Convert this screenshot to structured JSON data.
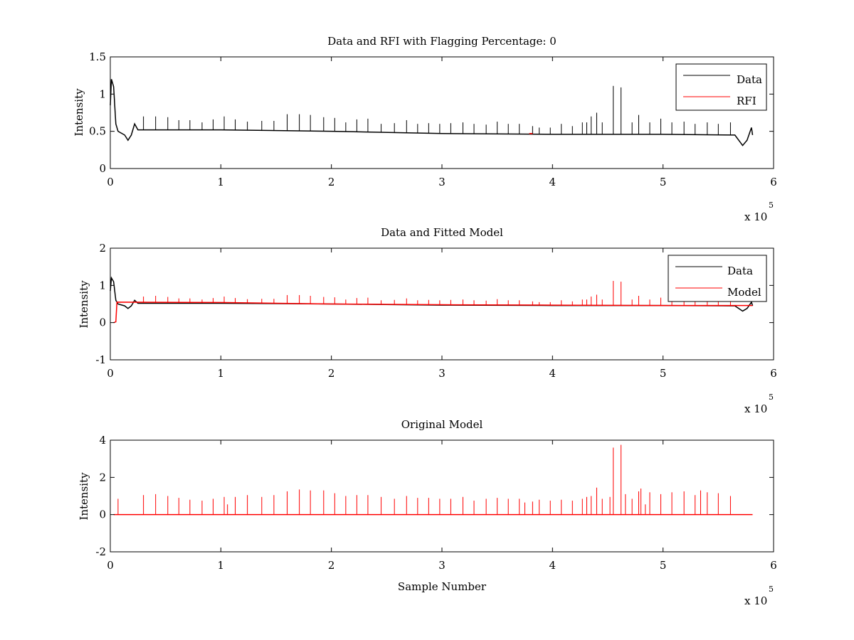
{
  "colors": {
    "data": "#000000",
    "red": "#ff0000",
    "background": "#ffffff"
  },
  "chart_data": [
    {
      "type": "line",
      "title": "Data and RFI with Flagging Percentage: 0",
      "xlabel": "",
      "ylabel": "Intensity",
      "xlim": [
        0,
        6
      ],
      "ylim": [
        0,
        1.5
      ],
      "x_ticks": [
        "0",
        "1",
        "2",
        "3",
        "4",
        "5",
        "6"
      ],
      "y_ticks": [
        "0",
        "0.5",
        "1",
        "1.5"
      ],
      "x_multiplier": "x 10",
      "x_multiplier_exp": "5",
      "legend": {
        "placement": "top-right",
        "entries": [
          "Data",
          "RFI"
        ]
      },
      "series": [
        {
          "name": "Data",
          "color": "#000000",
          "baseline": 0.5,
          "points": [
            [
              0,
              0.85
            ],
            [
              0.01,
              1.2
            ],
            [
              0.03,
              1.1
            ],
            [
              0.05,
              0.6
            ],
            [
              0.07,
              0.5
            ],
            [
              0.13,
              0.45
            ],
            [
              0.16,
              0.38
            ],
            [
              0.19,
              0.45
            ],
            [
              0.22,
              0.6
            ],
            [
              0.25,
              0.52
            ],
            [
              1.0,
              0.52
            ],
            [
              2.0,
              0.5
            ],
            [
              3.0,
              0.47
            ],
            [
              4.0,
              0.46
            ],
            [
              5.0,
              0.46
            ],
            [
              5.65,
              0.45
            ],
            [
              5.72,
              0.31
            ],
            [
              5.76,
              0.38
            ],
            [
              5.8,
              0.55
            ],
            [
              5.81,
              0.45
            ]
          ],
          "spikes": [
            [
              0.3,
              0.7
            ],
            [
              0.41,
              0.7
            ],
            [
              0.52,
              0.69
            ],
            [
              0.62,
              0.65
            ],
            [
              0.72,
              0.65
            ],
            [
              0.83,
              0.62
            ],
            [
              0.93,
              0.66
            ],
            [
              1.03,
              0.7
            ],
            [
              1.13,
              0.66
            ],
            [
              1.24,
              0.63
            ],
            [
              1.37,
              0.64
            ],
            [
              1.48,
              0.64
            ],
            [
              1.6,
              0.73
            ],
            [
              1.71,
              0.73
            ],
            [
              1.81,
              0.72
            ],
            [
              1.93,
              0.69
            ],
            [
              2.03,
              0.68
            ],
            [
              2.13,
              0.62
            ],
            [
              2.23,
              0.66
            ],
            [
              2.33,
              0.67
            ],
            [
              2.45,
              0.6
            ],
            [
              2.57,
              0.61
            ],
            [
              2.68,
              0.65
            ],
            [
              2.78,
              0.6
            ],
            [
              2.88,
              0.61
            ],
            [
              2.98,
              0.6
            ],
            [
              3.08,
              0.61
            ],
            [
              3.19,
              0.62
            ],
            [
              3.29,
              0.6
            ],
            [
              3.4,
              0.59
            ],
            [
              3.5,
              0.63
            ],
            [
              3.6,
              0.6
            ],
            [
              3.7,
              0.6
            ],
            [
              3.82,
              0.57
            ],
            [
              3.88,
              0.55
            ],
            [
              3.98,
              0.55
            ],
            [
              4.08,
              0.6
            ],
            [
              4.18,
              0.57
            ],
            [
              4.27,
              0.62
            ],
            [
              4.31,
              0.62
            ],
            [
              4.35,
              0.7
            ],
            [
              4.4,
              0.75
            ],
            [
              4.45,
              0.62
            ],
            [
              4.55,
              1.11
            ],
            [
              4.62,
              1.09
            ],
            [
              4.72,
              0.62
            ],
            [
              4.78,
              0.72
            ],
            [
              4.88,
              0.62
            ],
            [
              4.98,
              0.67
            ],
            [
              5.08,
              0.62
            ],
            [
              5.19,
              0.63
            ],
            [
              5.29,
              0.6
            ],
            [
              5.4,
              0.62
            ],
            [
              5.5,
              0.6
            ],
            [
              5.61,
              0.62
            ]
          ]
        },
        {
          "name": "RFI",
          "color": "#ff0000",
          "points": [
            [
              3.79,
              0.47
            ],
            [
              3.82,
              0.47
            ]
          ]
        }
      ]
    },
    {
      "type": "line",
      "title": "Data and Fitted Model",
      "xlabel": "",
      "ylabel": "Intensity",
      "xlim": [
        0,
        6
      ],
      "ylim": [
        -1,
        2
      ],
      "x_ticks": [
        "0",
        "1",
        "2",
        "3",
        "4",
        "5",
        "6"
      ],
      "y_ticks": [
        "-1",
        "0",
        "1",
        "2"
      ],
      "x_multiplier": "x 10",
      "x_multiplier_exp": "5",
      "legend": {
        "placement": "top-right",
        "entries": [
          "Data",
          "Model"
        ]
      },
      "series": [
        {
          "name": "Data",
          "color": "#000000",
          "points": [
            [
              0,
              0.85
            ],
            [
              0.01,
              1.2
            ],
            [
              0.03,
              1.1
            ],
            [
              0.05,
              0.6
            ],
            [
              0.07,
              0.5
            ],
            [
              0.13,
              0.45
            ],
            [
              0.16,
              0.38
            ],
            [
              0.19,
              0.45
            ],
            [
              0.22,
              0.6
            ],
            [
              0.25,
              0.52
            ],
            [
              1.0,
              0.52
            ],
            [
              2.0,
              0.5
            ],
            [
              3.0,
              0.47
            ],
            [
              4.0,
              0.46
            ],
            [
              5.0,
              0.46
            ],
            [
              5.65,
              0.45
            ],
            [
              5.72,
              0.31
            ],
            [
              5.76,
              0.38
            ],
            [
              5.8,
              0.55
            ],
            [
              5.81,
              0.45
            ]
          ]
        },
        {
          "name": "Model",
          "color": "#ff0000",
          "points": [
            [
              0.03,
              0.0
            ],
            [
              0.05,
              0.02
            ],
            [
              0.06,
              0.55
            ],
            [
              1.0,
              0.54
            ],
            [
              2.0,
              0.5
            ],
            [
              3.0,
              0.48
            ],
            [
              4.0,
              0.47
            ],
            [
              5.0,
              0.46
            ],
            [
              5.81,
              0.46
            ]
          ],
          "spikes": [
            [
              0.3,
              0.7
            ],
            [
              0.41,
              0.72
            ],
            [
              0.52,
              0.69
            ],
            [
              0.62,
              0.65
            ],
            [
              0.72,
              0.65
            ],
            [
              0.83,
              0.62
            ],
            [
              0.93,
              0.66
            ],
            [
              1.03,
              0.7
            ],
            [
              1.13,
              0.66
            ],
            [
              1.24,
              0.63
            ],
            [
              1.37,
              0.64
            ],
            [
              1.48,
              0.64
            ],
            [
              1.6,
              0.74
            ],
            [
              1.71,
              0.74
            ],
            [
              1.81,
              0.72
            ],
            [
              1.93,
              0.69
            ],
            [
              2.03,
              0.68
            ],
            [
              2.13,
              0.62
            ],
            [
              2.23,
              0.66
            ],
            [
              2.33,
              0.67
            ],
            [
              2.45,
              0.6
            ],
            [
              2.57,
              0.61
            ],
            [
              2.68,
              0.65
            ],
            [
              2.78,
              0.6
            ],
            [
              2.88,
              0.61
            ],
            [
              2.98,
              0.6
            ],
            [
              3.08,
              0.61
            ],
            [
              3.19,
              0.62
            ],
            [
              3.29,
              0.6
            ],
            [
              3.4,
              0.59
            ],
            [
              3.5,
              0.63
            ],
            [
              3.6,
              0.6
            ],
            [
              3.7,
              0.6
            ],
            [
              3.82,
              0.57
            ],
            [
              3.88,
              0.55
            ],
            [
              3.98,
              0.55
            ],
            [
              4.08,
              0.6
            ],
            [
              4.18,
              0.57
            ],
            [
              4.27,
              0.62
            ],
            [
              4.31,
              0.62
            ],
            [
              4.35,
              0.7
            ],
            [
              4.4,
              0.75
            ],
            [
              4.45,
              0.62
            ],
            [
              4.55,
              1.12
            ],
            [
              4.62,
              1.1
            ],
            [
              4.72,
              0.62
            ],
            [
              4.78,
              0.72
            ],
            [
              4.88,
              0.62
            ],
            [
              4.98,
              0.67
            ],
            [
              5.08,
              0.62
            ],
            [
              5.19,
              0.63
            ],
            [
              5.29,
              0.6
            ],
            [
              5.4,
              0.62
            ],
            [
              5.5,
              0.6
            ],
            [
              5.61,
              0.62
            ]
          ]
        }
      ]
    },
    {
      "type": "line",
      "title": "Original Model",
      "xlabel": "Sample Number",
      "ylabel": "Intensity",
      "xlim": [
        0,
        6
      ],
      "ylim": [
        -2,
        4
      ],
      "x_ticks": [
        "0",
        "1",
        "2",
        "3",
        "4",
        "5",
        "6"
      ],
      "y_ticks": [
        "-2",
        "0",
        "2",
        "4"
      ],
      "x_multiplier": "x 10",
      "x_multiplier_exp": "5",
      "series": [
        {
          "name": "",
          "color": "#ff0000",
          "points": [
            [
              0.03,
              0.0
            ],
            [
              5.81,
              0.0
            ]
          ],
          "spikes": [
            [
              0.07,
              0.85
            ],
            [
              0.3,
              1.05
            ],
            [
              0.41,
              1.1
            ],
            [
              0.52,
              1.0
            ],
            [
              0.62,
              0.9
            ],
            [
              0.72,
              0.8
            ],
            [
              0.83,
              0.75
            ],
            [
              0.93,
              0.85
            ],
            [
              1.03,
              0.95
            ],
            [
              1.06,
              0.55
            ],
            [
              1.13,
              0.95
            ],
            [
              1.24,
              1.05
            ],
            [
              1.37,
              0.95
            ],
            [
              1.48,
              1.05
            ],
            [
              1.6,
              1.25
            ],
            [
              1.71,
              1.35
            ],
            [
              1.81,
              1.3
            ],
            [
              1.93,
              1.3
            ],
            [
              2.03,
              1.15
            ],
            [
              2.13,
              1.0
            ],
            [
              2.23,
              1.05
            ],
            [
              2.33,
              1.05
            ],
            [
              2.45,
              0.95
            ],
            [
              2.57,
              0.85
            ],
            [
              2.68,
              1.0
            ],
            [
              2.78,
              0.9
            ],
            [
              2.88,
              0.9
            ],
            [
              2.98,
              0.85
            ],
            [
              3.08,
              0.85
            ],
            [
              3.19,
              0.95
            ],
            [
              3.29,
              0.75
            ],
            [
              3.4,
              0.85
            ],
            [
              3.5,
              0.9
            ],
            [
              3.6,
              0.85
            ],
            [
              3.7,
              0.85
            ],
            [
              3.75,
              0.65
            ],
            [
              3.82,
              0.7
            ],
            [
              3.88,
              0.8
            ],
            [
              3.98,
              0.75
            ],
            [
              4.08,
              0.8
            ],
            [
              4.18,
              0.75
            ],
            [
              4.27,
              0.85
            ],
            [
              4.31,
              0.95
            ],
            [
              4.35,
              1.0
            ],
            [
              4.4,
              1.45
            ],
            [
              4.45,
              0.85
            ],
            [
              4.52,
              0.95
            ],
            [
              4.55,
              3.6
            ],
            [
              4.62,
              3.75
            ],
            [
              4.66,
              1.1
            ],
            [
              4.72,
              0.85
            ],
            [
              4.78,
              1.25
            ],
            [
              4.8,
              1.4
            ],
            [
              4.84,
              0.55
            ],
            [
              4.88,
              1.2
            ],
            [
              4.98,
              1.1
            ],
            [
              5.08,
              1.2
            ],
            [
              5.19,
              1.25
            ],
            [
              5.29,
              1.05
            ],
            [
              5.34,
              1.3
            ],
            [
              5.4,
              1.2
            ],
            [
              5.5,
              1.15
            ],
            [
              5.61,
              1.0
            ]
          ]
        }
      ]
    }
  ]
}
